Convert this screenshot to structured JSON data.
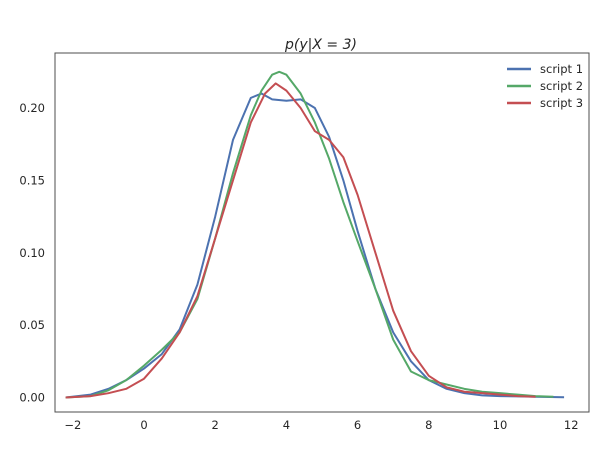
{
  "chart_data": {
    "type": "line",
    "title": "p(y|X = 3)",
    "xlabel": "",
    "ylabel": "",
    "xlim": [
      -2.5,
      12.5
    ],
    "ylim": [
      -0.01,
      0.238
    ],
    "xticks": [
      -2,
      0,
      2,
      4,
      6,
      8,
      10,
      12
    ],
    "yticks": [
      0.0,
      0.05,
      0.1,
      0.15,
      0.2
    ],
    "xtick_labels": [
      "−2",
      "0",
      "2",
      "4",
      "6",
      "8",
      "10",
      "12"
    ],
    "ytick_labels": [
      "0.00",
      "0.05",
      "0.10",
      "0.15",
      "0.20"
    ],
    "grid": false,
    "legend_position": "top-right",
    "series": [
      {
        "name": "script 1",
        "color": "#4c72b0",
        "x": [
          -2.2,
          -1.5,
          -1.0,
          -0.5,
          0.0,
          0.5,
          1.0,
          1.5,
          2.0,
          2.5,
          3.0,
          3.3,
          3.6,
          4.0,
          4.4,
          4.8,
          5.2,
          5.6,
          6.0,
          6.5,
          7.0,
          7.5,
          8.0,
          8.5,
          9.0,
          9.5,
          10.0,
          10.5,
          11.0,
          11.8
        ],
        "y": [
          0.0,
          0.002,
          0.006,
          0.012,
          0.02,
          0.03,
          0.047,
          0.078,
          0.125,
          0.178,
          0.207,
          0.21,
          0.206,
          0.205,
          0.206,
          0.2,
          0.18,
          0.15,
          0.115,
          0.075,
          0.045,
          0.025,
          0.012,
          0.006,
          0.003,
          0.0015,
          0.001,
          0.0008,
          0.0005,
          0.0002
        ]
      },
      {
        "name": "script 2",
        "color": "#55a868",
        "x": [
          -2.2,
          -1.5,
          -1.0,
          -0.5,
          0.0,
          0.5,
          1.0,
          1.5,
          2.0,
          2.5,
          3.0,
          3.3,
          3.6,
          3.8,
          4.0,
          4.4,
          4.8,
          5.2,
          5.6,
          6.0,
          6.5,
          7.0,
          7.5,
          8.0,
          8.5,
          9.0,
          9.5,
          10.0,
          10.5,
          11.0,
          11.5
        ],
        "y": [
          0.0,
          0.001,
          0.005,
          0.012,
          0.022,
          0.033,
          0.045,
          0.068,
          0.11,
          0.155,
          0.195,
          0.212,
          0.223,
          0.225,
          0.223,
          0.21,
          0.19,
          0.165,
          0.135,
          0.108,
          0.075,
          0.04,
          0.018,
          0.012,
          0.009,
          0.006,
          0.004,
          0.003,
          0.002,
          0.001,
          0.0005
        ]
      },
      {
        "name": "script 3",
        "color": "#c44e52",
        "x": [
          -2.2,
          -1.5,
          -1.0,
          -0.5,
          0.0,
          0.5,
          1.0,
          1.5,
          2.0,
          2.5,
          3.0,
          3.4,
          3.7,
          4.0,
          4.4,
          4.8,
          5.2,
          5.6,
          6.0,
          6.5,
          7.0,
          7.5,
          8.0,
          8.5,
          9.0,
          9.5,
          10.0,
          10.5,
          11.0
        ],
        "y": [
          0.0,
          0.001,
          0.003,
          0.006,
          0.013,
          0.027,
          0.045,
          0.07,
          0.11,
          0.15,
          0.19,
          0.21,
          0.217,
          0.212,
          0.2,
          0.184,
          0.178,
          0.166,
          0.14,
          0.1,
          0.06,
          0.032,
          0.015,
          0.007,
          0.004,
          0.003,
          0.002,
          0.001,
          0.0005
        ]
      }
    ]
  }
}
